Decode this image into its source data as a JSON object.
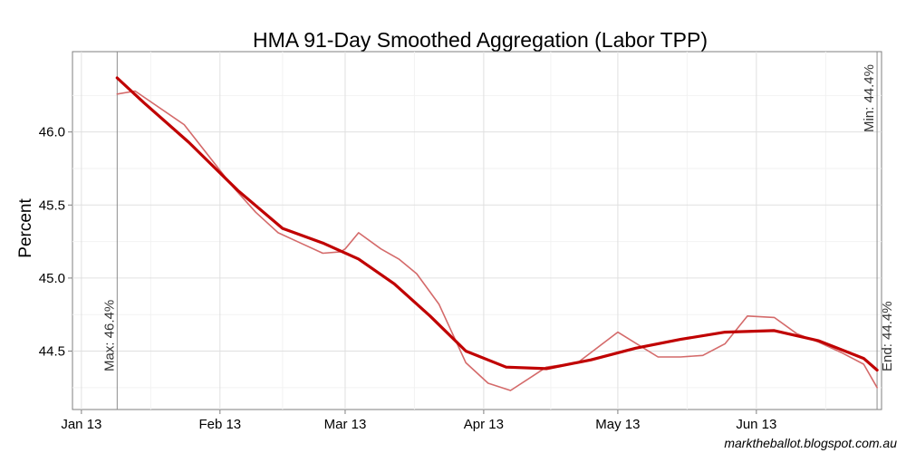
{
  "chart_data": {
    "type": "line",
    "title": "HMA 91-Day Smoothed Aggregation (Labor TPP)",
    "xlabel": "",
    "ylabel": "Percent",
    "x_ticks": [
      "Jan 13",
      "Feb 13",
      "Mar 13",
      "Apr 13",
      "May 13",
      "Jun 13"
    ],
    "y_ticks": [
      "44.5",
      "45.0",
      "45.5",
      "46.0"
    ],
    "xlim": [
      "2012-12-30",
      "2013-06-29"
    ],
    "ylim": [
      44.1,
      46.55
    ],
    "grid": true,
    "series": [
      {
        "name": "",
        "color": "#d46a6a",
        "points": [
          [
            "2013-01-09",
            46.26
          ],
          [
            "2013-01-13",
            46.28
          ],
          [
            "2013-01-24",
            46.05
          ],
          [
            "2013-02-04",
            45.62
          ],
          [
            "2013-02-09",
            45.45
          ],
          [
            "2013-02-14",
            45.31
          ],
          [
            "2013-02-19",
            45.24
          ],
          [
            "2013-02-24",
            45.17
          ],
          [
            "2013-02-28",
            45.18
          ],
          [
            "2013-03-01",
            45.2
          ],
          [
            "2013-03-04",
            45.31
          ],
          [
            "2013-03-09",
            45.2
          ],
          [
            "2013-03-13",
            45.13
          ],
          [
            "2013-03-17",
            45.03
          ],
          [
            "2013-03-22",
            44.82
          ],
          [
            "2013-03-28",
            44.42
          ],
          [
            "2013-04-02",
            44.28
          ],
          [
            "2013-04-07",
            44.23
          ],
          [
            "2013-04-12",
            44.33
          ],
          [
            "2013-04-15",
            44.39
          ],
          [
            "2013-04-22",
            44.42
          ],
          [
            "2013-05-01",
            44.63
          ],
          [
            "2013-05-10",
            44.46
          ],
          [
            "2013-05-15",
            44.46
          ],
          [
            "2013-05-20",
            44.47
          ],
          [
            "2013-05-25",
            44.55
          ],
          [
            "2013-05-30",
            44.74
          ],
          [
            "2013-06-05",
            44.73
          ],
          [
            "2013-06-10",
            44.62
          ],
          [
            "2013-06-15",
            44.56
          ],
          [
            "2013-06-20",
            44.49
          ],
          [
            "2013-06-25",
            44.41
          ],
          [
            "2013-06-28",
            44.25
          ]
        ]
      },
      {
        "name": "",
        "color": "#c00000",
        "points": [
          [
            "2013-01-09",
            46.37
          ],
          [
            "2013-01-15",
            46.2
          ],
          [
            "2013-01-25",
            45.93
          ],
          [
            "2013-02-05",
            45.6
          ],
          [
            "2013-02-15",
            45.34
          ],
          [
            "2013-02-24",
            45.24
          ],
          [
            "2013-03-04",
            45.13
          ],
          [
            "2013-03-12",
            44.96
          ],
          [
            "2013-03-20",
            44.74
          ],
          [
            "2013-03-28",
            44.5
          ],
          [
            "2013-04-06",
            44.39
          ],
          [
            "2013-04-15",
            44.38
          ],
          [
            "2013-04-25",
            44.44
          ],
          [
            "2013-05-05",
            44.52
          ],
          [
            "2013-05-15",
            44.58
          ],
          [
            "2013-05-25",
            44.63
          ],
          [
            "2013-06-05",
            44.64
          ],
          [
            "2013-06-15",
            44.57
          ],
          [
            "2013-06-25",
            44.45
          ],
          [
            "2013-06-28",
            44.37
          ]
        ]
      }
    ],
    "vlines": [
      {
        "x": "2013-01-09",
        "label": "Max: 46.4%",
        "text_align": "bottom"
      },
      {
        "x": "2013-06-28",
        "label": "Min: 44.4%",
        "text_align": "top"
      },
      {
        "x": "2013-06-28",
        "label": "End: 44.4%",
        "text_align": "bottom"
      }
    ],
    "source": "marktheballot.blogspot.com.au"
  }
}
